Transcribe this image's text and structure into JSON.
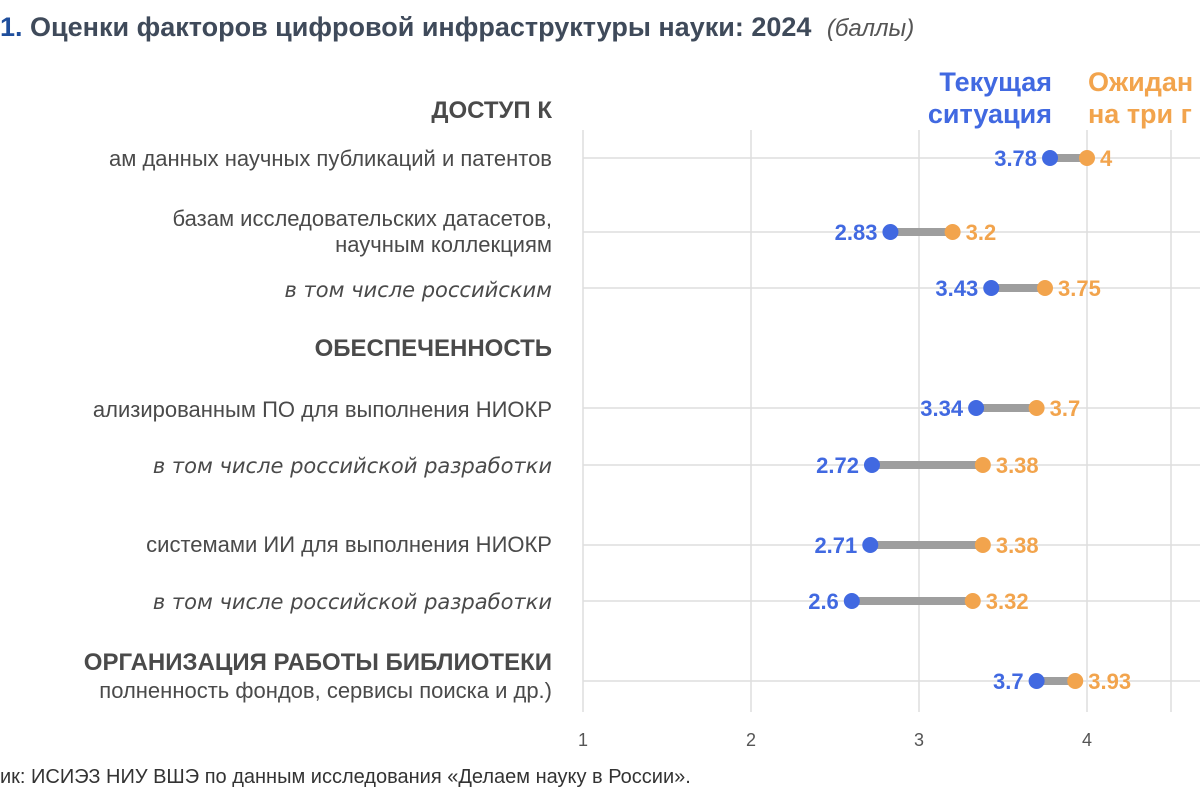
{
  "header": {
    "number": "1.",
    "title": "Оценки факторов цифровой инфраструктуры науки: 2024",
    "unit": "(баллы)"
  },
  "legend": {
    "current_line1": "Текущая",
    "current_line2": "ситуация",
    "expected_line1": "Ожидан",
    "expected_line2": "на три г"
  },
  "headings": [
    {
      "text": "ДОСТУП К"
    },
    {
      "text": "ОБЕСПЕЧЕННОСТЬ"
    },
    {
      "text": "ОРГАНИЗАЦИЯ РАБОТЫ БИБЛИОТЕКИ"
    }
  ],
  "labels": [
    {
      "line1": "ам данных научных публикаций и патентов",
      "line2": ""
    },
    {
      "line1": "базам исследовательских датасетов,",
      "line2": "научным коллекциям"
    },
    {
      "line1": "в том числе российским",
      "line2": ""
    },
    {
      "line1": "ализированным ПО для выполнения НИОКР",
      "line2": ""
    },
    {
      "line1": "в том числе российской разработки",
      "line2": ""
    },
    {
      "line1": "системами ИИ для выполнения НИОКР",
      "line2": ""
    },
    {
      "line1": "в том числе российской разработки",
      "line2": ""
    },
    {
      "line1": "полненность фондов, сервисы поиска и др.)",
      "line2": ""
    }
  ],
  "source": "ик: ИСИЭЗ НИУ ВШЭ по данным исследования «Делаем науку в России».",
  "colors": {
    "current": "#4169e1",
    "expected": "#f2a44d",
    "connector": "#9e9e9e",
    "grid": "#dedede"
  },
  "chart_data": {
    "type": "dumbbell",
    "title": "Оценки факторов цифровой инфраструктуры науки: 2024",
    "unit": "(баллы)",
    "xlim": [
      1,
      4.5
    ],
    "xticks": [
      "1",
      "2",
      "3",
      "4"
    ],
    "series": [
      {
        "name": "Текущая ситуация",
        "values": [
          3.78,
          2.83,
          3.43,
          3.34,
          2.72,
          2.71,
          2.6,
          3.7
        ]
      },
      {
        "name": "Ожидания на три года",
        "values": [
          4,
          3.2,
          3.75,
          3.7,
          3.38,
          3.38,
          3.32,
          3.93
        ]
      }
    ],
    "value_labels_current": [
      "3.78",
      "2.83",
      "3.43",
      "3.34",
      "2.72",
      "2.71",
      "2.6",
      "3.7"
    ],
    "value_labels_expected": [
      "4",
      "3.2",
      "3.75",
      "3.7",
      "3.38",
      "3.38",
      "3.32",
      "3.93"
    ]
  }
}
